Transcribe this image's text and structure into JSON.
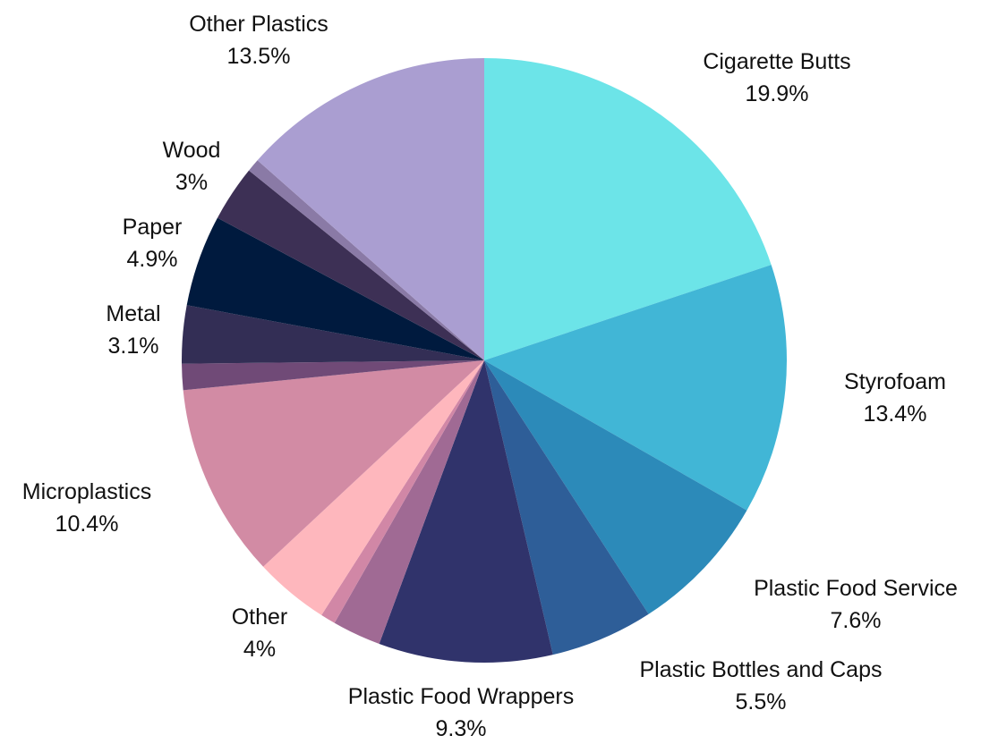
{
  "chart_data": {
    "type": "pie",
    "title": "",
    "start": "12 o'clock, clockwise",
    "slices": [
      {
        "label": "Cigarette Butts",
        "value": 19.9,
        "display": "19.9%",
        "color": "#6ce4e8",
        "labeled": true
      },
      {
        "label": "Styrofoam",
        "value": 13.4,
        "display": "13.4%",
        "color": "#41b6d6",
        "labeled": true
      },
      {
        "label": "Plastic Food Service",
        "value": 7.6,
        "display": "7.6%",
        "color": "#2c8ab9",
        "labeled": true
      },
      {
        "label": "Plastic Bottles and Caps",
        "value": 5.5,
        "display": "5.5%",
        "color": "#2e5e98",
        "labeled": true
      },
      {
        "label": "Plastic Food Wrappers",
        "value": 9.3,
        "display": "9.3%",
        "color": "#30336b",
        "labeled": true
      },
      {
        "label": "",
        "value": 2.6,
        "display": "",
        "color": "#a06a94",
        "labeled": false
      },
      {
        "label": "",
        "value": 0.8,
        "display": "",
        "color": "#d187a6",
        "labeled": false
      },
      {
        "label": "Other",
        "value": 4,
        "display": "4%",
        "color": "#feb7bd",
        "labeled": true
      },
      {
        "label": "Microplastics",
        "value": 10.4,
        "display": "10.4%",
        "color": "#d28ba4",
        "labeled": true
      },
      {
        "label": "",
        "value": 1.4,
        "display": "",
        "color": "#704a77",
        "labeled": false
      },
      {
        "label": "Metal",
        "value": 3.1,
        "display": "3.1%",
        "color": "#332e55",
        "labeled": true
      },
      {
        "label": "Paper",
        "value": 4.9,
        "display": "4.9%",
        "color": "#001a3e",
        "labeled": true
      },
      {
        "label": "Wood",
        "value": 3,
        "display": "3%",
        "color": "#3d3055",
        "labeled": true
      },
      {
        "label": "",
        "value": 0.7,
        "display": "",
        "color": "#8a7aa6",
        "labeled": false
      },
      {
        "label": "Other Plastics",
        "value": 13.5,
        "display": "13.5%",
        "color": "#aa9ed1",
        "labeled": true
      }
    ]
  }
}
